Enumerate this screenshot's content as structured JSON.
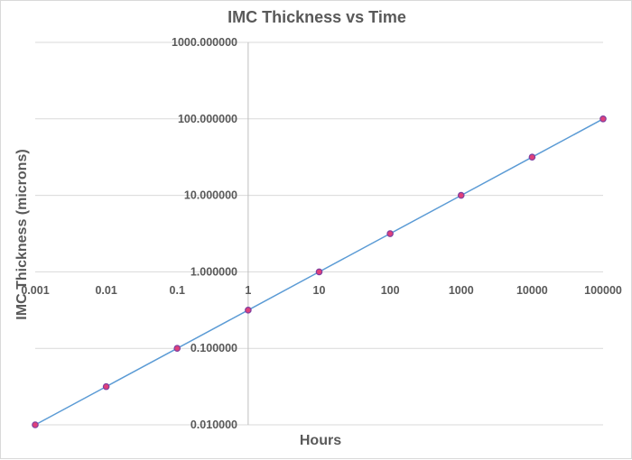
{
  "chart_data": {
    "type": "scatter",
    "title": "IMC Thickness vs Time",
    "xlabel": "Hours",
    "ylabel": "IMC Thickness (microns)",
    "x_scale": "log",
    "y_scale": "log",
    "xlim": [
      0.001,
      100000
    ],
    "ylim": [
      0.01,
      1000
    ],
    "x_ticks": [
      "0.001",
      "0.01",
      "0.1",
      "1",
      "10",
      "100",
      "1000",
      "10000",
      "100000"
    ],
    "y_ticks": [
      "0.010000",
      "0.100000",
      "1.000000",
      "10.000000",
      "100.000000",
      "1000.000000"
    ],
    "grid": "horizontal",
    "legend": "none",
    "series": [
      {
        "x": [
          0.001,
          0.01,
          0.1,
          1,
          10,
          100,
          1000,
          10000,
          100000
        ],
        "y": [
          0.01,
          0.0316,
          0.1,
          0.316,
          1,
          3.16,
          10,
          31.6,
          100
        ],
        "line_color": "#5b9bd5",
        "marker_fill": "#e0407a",
        "marker_edge": "#7f3f9f"
      }
    ]
  }
}
